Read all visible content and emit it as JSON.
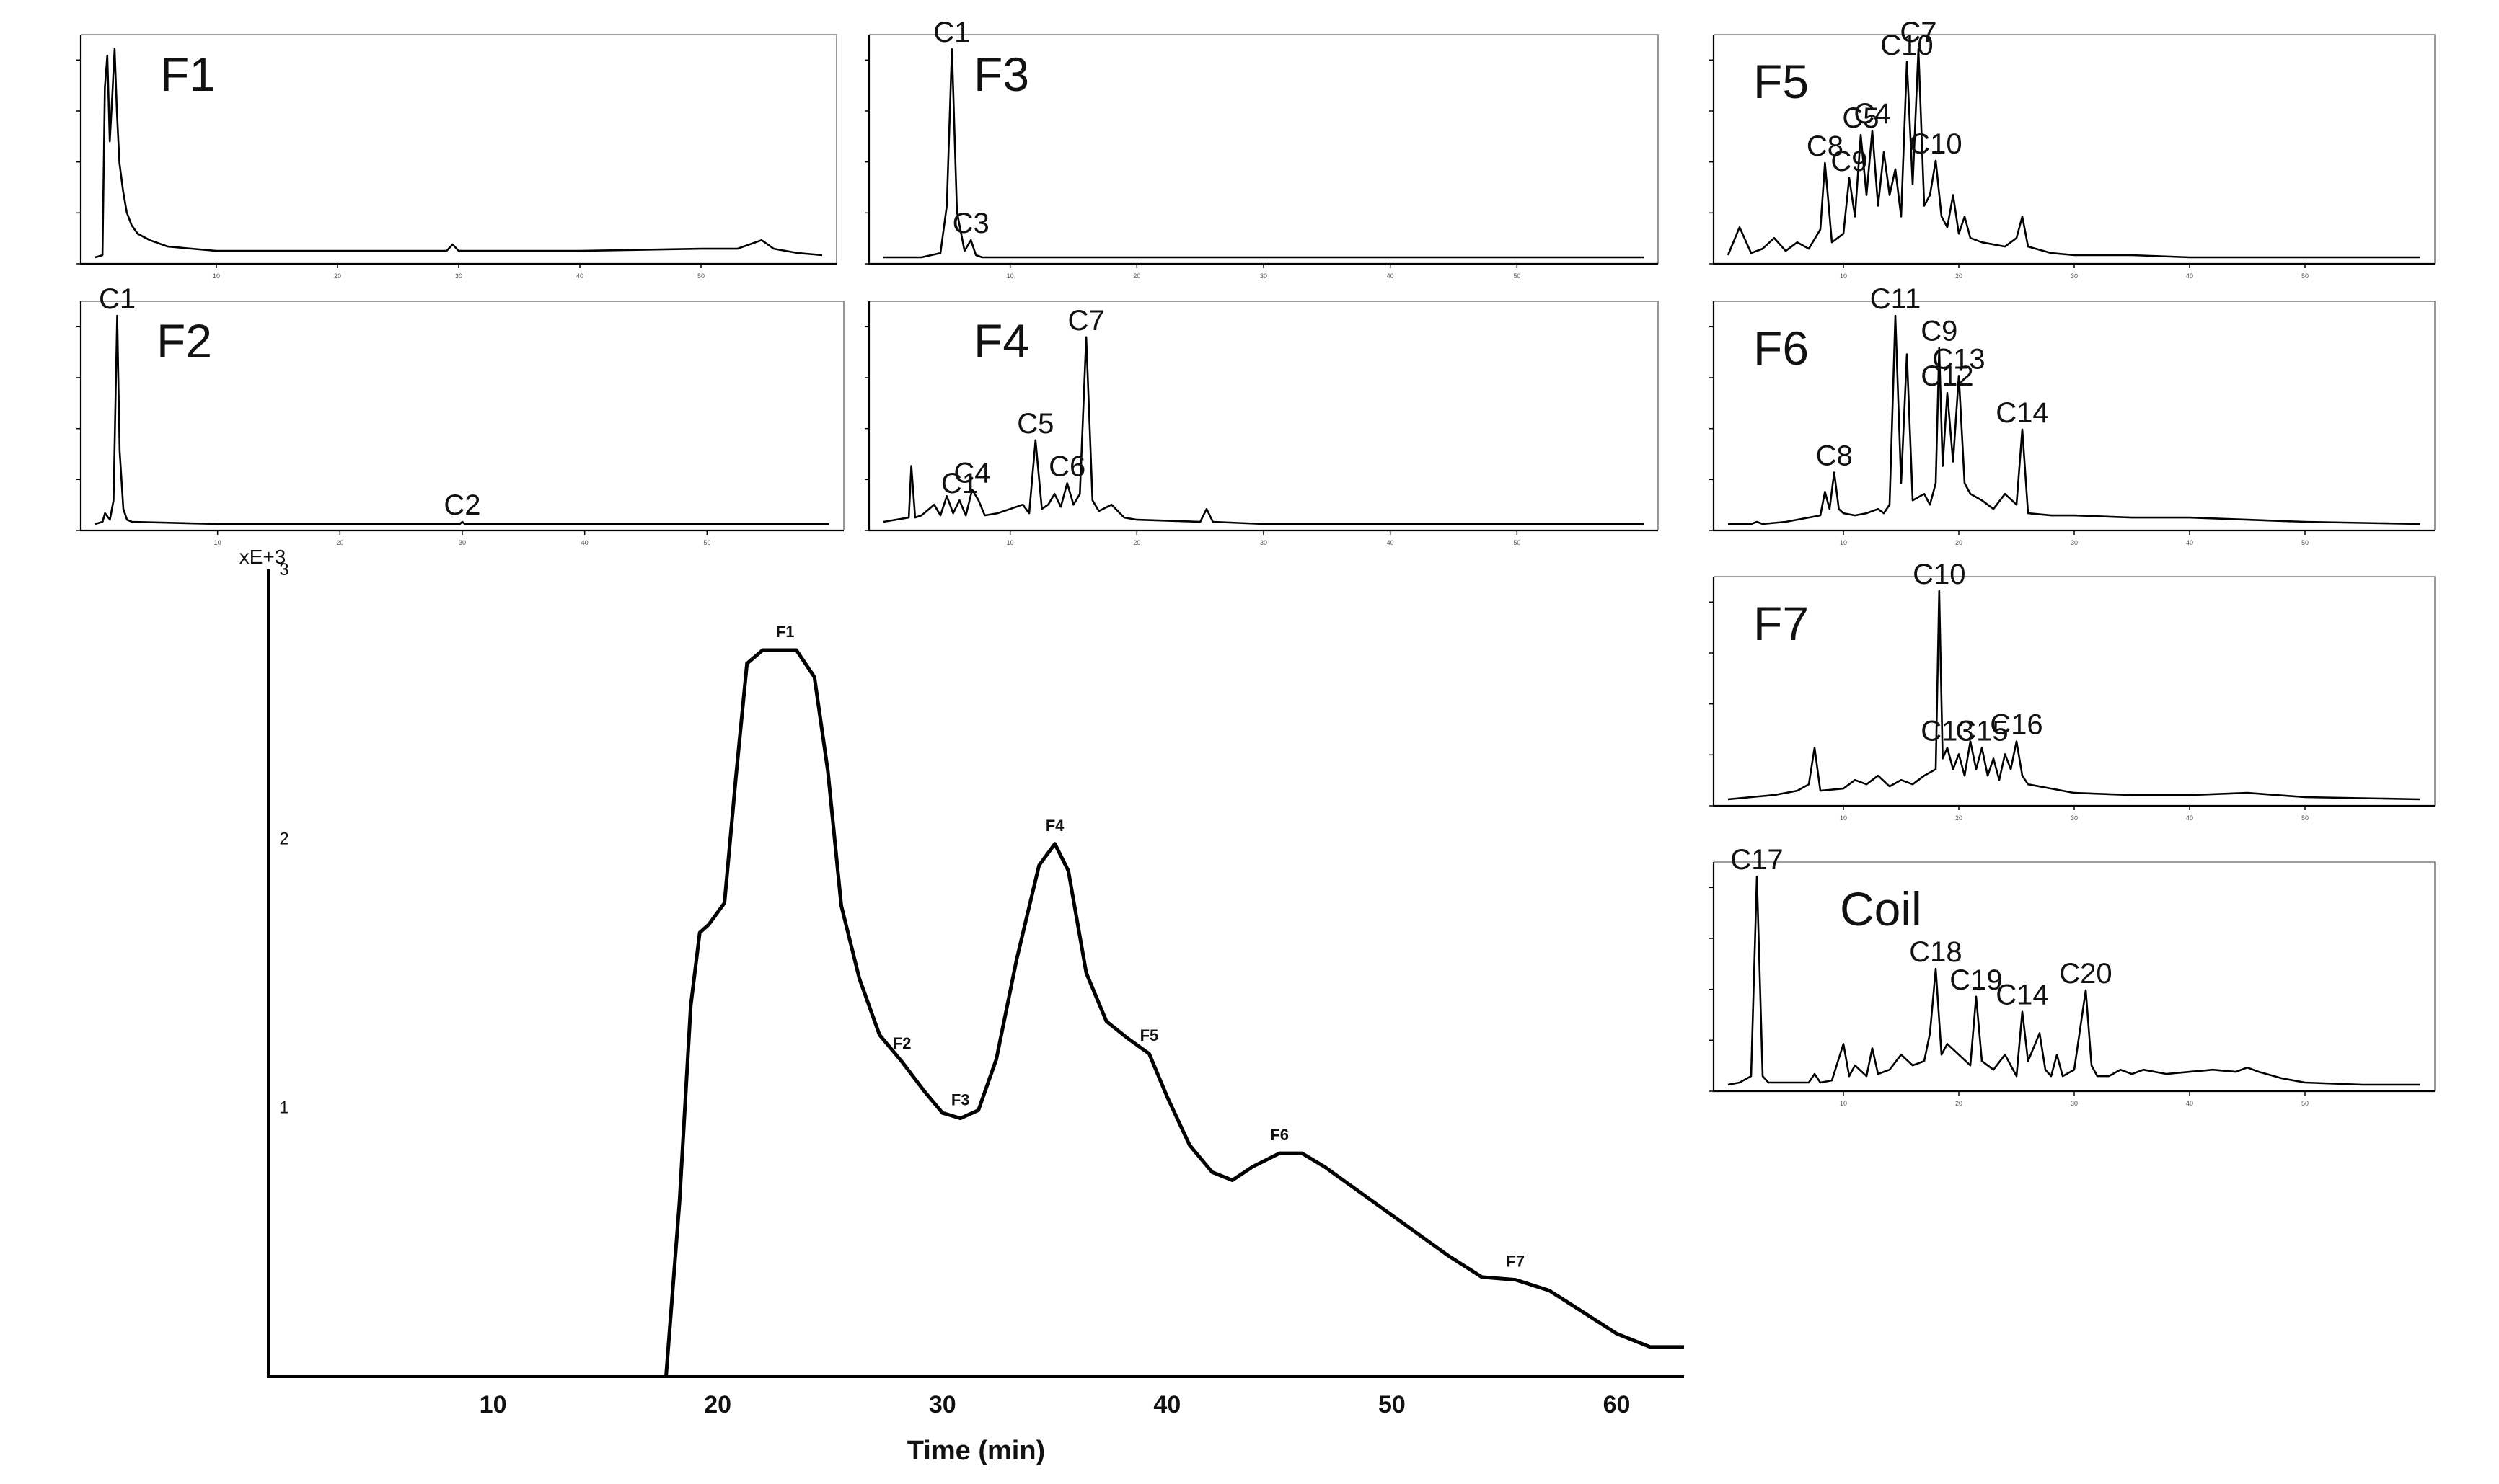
{
  "chart_data": [
    {
      "id": "main",
      "type": "line",
      "title": "",
      "xlabel": "Time (min)",
      "ylabel": "",
      "y_scale_label": "xE+3",
      "xlim": [
        0,
        63
      ],
      "ylim": [
        0,
        3
      ],
      "x_ticks": [
        "10",
        "20",
        "30",
        "40",
        "50",
        "60"
      ],
      "y_ticks": [
        "1",
        "2",
        "3"
      ],
      "series": [
        {
          "name": "profile",
          "x": [
            17.7,
            18.3,
            18.8,
            19.2,
            19.6,
            20.3,
            20.8,
            21.3,
            22.0,
            23.5,
            24.3,
            24.9,
            25.5,
            26.3,
            27.2,
            28.2,
            29.2,
            30.0,
            30.8,
            31.6,
            32.4,
            33.3,
            34.3,
            35.0,
            35.6,
            36.4,
            37.3,
            38.2,
            39.2,
            40.0,
            41.0,
            42.0,
            42.9,
            43.8,
            45.0,
            46.0,
            47.0,
            48.5,
            50.5,
            52.5,
            54.0,
            55.5,
            57.0,
            58.5,
            60.0,
            61.5,
            63.0
          ],
          "y": [
            0.0,
            0.65,
            1.38,
            1.65,
            1.68,
            1.76,
            2.22,
            2.65,
            2.7,
            2.7,
            2.6,
            2.25,
            1.75,
            1.48,
            1.27,
            1.17,
            1.06,
            0.98,
            0.96,
            0.99,
            1.18,
            1.55,
            1.9,
            1.98,
            1.88,
            1.5,
            1.32,
            1.26,
            1.2,
            1.04,
            0.86,
            0.76,
            0.73,
            0.78,
            0.83,
            0.83,
            0.78,
            0.69,
            0.57,
            0.45,
            0.37,
            0.36,
            0.32,
            0.24,
            0.16,
            0.11,
            0.11
          ]
        }
      ],
      "markers": [
        {
          "label": "F1",
          "x": 23.0,
          "y": 2.7
        },
        {
          "label": "F2",
          "x": 28.2,
          "y": 1.17
        },
        {
          "label": "F3",
          "x": 30.8,
          "y": 0.96
        },
        {
          "label": "F4",
          "x": 35.0,
          "y": 1.98
        },
        {
          "label": "F5",
          "x": 39.2,
          "y": 1.2
        },
        {
          "label": "F6",
          "x": 45.0,
          "y": 0.83
        },
        {
          "label": "F7",
          "x": 55.5,
          "y": 0.36
        }
      ]
    },
    {
      "id": "F1",
      "type": "line",
      "title": "F1",
      "xlim": [
        0,
        60
      ],
      "ylim": [
        0,
        1
      ],
      "x_ticks": [
        "10",
        "20",
        "30",
        "40",
        "50"
      ],
      "series": [
        {
          "name": "F1",
          "x": [
            0,
            0.6,
            0.8,
            1.0,
            1.2,
            1.4,
            1.6,
            1.8,
            2.0,
            2.3,
            2.6,
            3.0,
            3.5,
            4.5,
            6,
            10,
            20,
            29,
            29.5,
            30,
            40,
            50,
            53,
            55,
            56,
            58,
            60
          ],
          "y": [
            0.01,
            0.02,
            0.8,
            0.95,
            0.55,
            0.75,
            0.98,
            0.68,
            0.45,
            0.32,
            0.22,
            0.16,
            0.12,
            0.09,
            0.06,
            0.04,
            0.04,
            0.04,
            0.07,
            0.04,
            0.04,
            0.05,
            0.05,
            0.09,
            0.05,
            0.03,
            0.02
          ]
        }
      ],
      "peaks": []
    },
    {
      "id": "F2",
      "type": "line",
      "title": "F2",
      "xlim": [
        0,
        60
      ],
      "ylim": [
        0,
        1
      ],
      "x_ticks": [
        "10",
        "20",
        "30",
        "40",
        "50"
      ],
      "series": [
        {
          "name": "F2",
          "x": [
            0,
            0.6,
            0.8,
            1.2,
            1.5,
            1.8,
            2.0,
            2.3,
            2.6,
            3.0,
            10,
            29.8,
            30,
            30.2,
            60
          ],
          "y": [
            0.01,
            0.02,
            0.06,
            0.03,
            0.12,
            0.98,
            0.35,
            0.08,
            0.03,
            0.02,
            0.01,
            0.01,
            0.02,
            0.01,
            0.01
          ]
        }
      ],
      "peaks": [
        {
          "label": "C1",
          "x": 1.8,
          "y": 0.98
        },
        {
          "label": "C2",
          "x": 30.0,
          "y": 0.02
        }
      ]
    },
    {
      "id": "F3",
      "type": "line",
      "title": "F3",
      "xlim": [
        0,
        60
      ],
      "ylim": [
        0,
        1
      ],
      "x_ticks": [
        "10",
        "20",
        "30",
        "40",
        "50"
      ],
      "series": [
        {
          "name": "F3",
          "x": [
            0,
            3,
            4.5,
            5.0,
            5.4,
            5.8,
            6.4,
            6.9,
            7.3,
            7.8,
            9,
            60
          ],
          "y": [
            0.01,
            0.01,
            0.03,
            0.25,
            0.98,
            0.22,
            0.04,
            0.09,
            0.02,
            0.01,
            0.01,
            0.01
          ]
        }
      ],
      "peaks": [
        {
          "label": "C1",
          "x": 5.4,
          "y": 0.98
        },
        {
          "label": "C3",
          "x": 6.9,
          "y": 0.09
        }
      ]
    },
    {
      "id": "F4",
      "type": "line",
      "title": "F4",
      "xlim": [
        0,
        60
      ],
      "ylim": [
        0,
        1
      ],
      "x_ticks": [
        "10",
        "20",
        "30",
        "40",
        "50"
      ],
      "series": [
        {
          "name": "F4",
          "x": [
            0,
            2.0,
            2.2,
            2.5,
            3,
            4.0,
            4.5,
            5,
            5.5,
            6,
            6.5,
            7,
            7.5,
            8,
            9,
            10,
            11,
            11.5,
            12,
            12.5,
            13,
            13.5,
            14,
            14.5,
            15,
            15.5,
            16,
            16.5,
            17,
            18,
            19,
            20,
            25,
            25.5,
            26,
            30,
            60
          ],
          "y": [
            0.02,
            0.04,
            0.28,
            0.04,
            0.05,
            0.1,
            0.05,
            0.14,
            0.06,
            0.12,
            0.05,
            0.17,
            0.12,
            0.05,
            0.06,
            0.08,
            0.1,
            0.06,
            0.4,
            0.08,
            0.1,
            0.15,
            0.09,
            0.2,
            0.1,
            0.15,
            0.88,
            0.12,
            0.07,
            0.1,
            0.04,
            0.03,
            0.02,
            0.08,
            0.02,
            0.01,
            0.01
          ]
        }
      ],
      "peaks": [
        {
          "label": "C1",
          "x": 6.0,
          "y": 0.12
        },
        {
          "label": "C4",
          "x": 7.0,
          "y": 0.17
        },
        {
          "label": "C5",
          "x": 12.0,
          "y": 0.4
        },
        {
          "label": "C6",
          "x": 14.5,
          "y": 0.2
        },
        {
          "label": "C7",
          "x": 16.0,
          "y": 0.88
        }
      ]
    },
    {
      "id": "F5",
      "type": "line",
      "title": "F5",
      "xlim": [
        0,
        60
      ],
      "ylim": [
        0,
        1
      ],
      "x_ticks": [
        "10",
        "20",
        "30",
        "40",
        "50"
      ],
      "series": [
        {
          "name": "F5",
          "x": [
            0,
            1,
            2,
            3,
            4,
            5,
            6,
            7,
            8,
            8.4,
            9,
            9.5,
            10,
            10.5,
            11,
            11.5,
            12,
            12.5,
            13,
            13.5,
            14,
            14.5,
            15,
            15.5,
            16,
            16.5,
            17,
            17.5,
            18,
            18.5,
            19,
            19.5,
            20,
            20.5,
            21,
            22,
            24,
            25,
            25.5,
            26,
            28,
            30,
            35,
            40,
            45,
            50,
            60
          ],
          "y": [
            0.02,
            0.15,
            0.03,
            0.05,
            0.1,
            0.04,
            0.08,
            0.05,
            0.14,
            0.45,
            0.08,
            0.1,
            0.12,
            0.38,
            0.2,
            0.58,
            0.3,
            0.6,
            0.25,
            0.5,
            0.3,
            0.42,
            0.2,
            0.92,
            0.35,
            0.98,
            0.25,
            0.3,
            0.46,
            0.2,
            0.15,
            0.3,
            0.12,
            0.2,
            0.1,
            0.08,
            0.06,
            0.1,
            0.2,
            0.06,
            0.03,
            0.02,
            0.02,
            0.01,
            0.01,
            0.01,
            0.01
          ]
        }
      ],
      "peaks": [
        {
          "label": "C8",
          "x": 8.4,
          "y": 0.45
        },
        {
          "label": "C9",
          "x": 10.5,
          "y": 0.38
        },
        {
          "label": "C5",
          "x": 11.5,
          "y": 0.58
        },
        {
          "label": "C4",
          "x": 12.5,
          "y": 0.6
        },
        {
          "label": "C10",
          "x": 15.5,
          "y": 0.92
        },
        {
          "label": "C7",
          "x": 16.5,
          "y": 0.98
        },
        {
          "label": "C10",
          "x": 18.0,
          "y": 0.46
        }
      ]
    },
    {
      "id": "F6",
      "type": "line",
      "title": "F6",
      "xlim": [
        0,
        60
      ],
      "ylim": [
        0,
        1
      ],
      "x_ticks": [
        "10",
        "20",
        "30",
        "40",
        "50"
      ],
      "series": [
        {
          "name": "F6",
          "x": [
            0,
            2,
            2.5,
            3,
            5,
            7,
            8,
            8.4,
            8.8,
            9.2,
            9.6,
            10,
            11,
            12,
            13,
            13.5,
            14,
            14.5,
            15,
            15.5,
            16,
            17,
            17.5,
            18,
            18.3,
            18.6,
            19,
            19.5,
            20,
            20.5,
            21,
            22,
            23,
            24,
            25,
            25.5,
            26,
            28,
            30,
            35,
            40,
            45,
            50,
            60
          ],
          "y": [
            0.01,
            0.01,
            0.02,
            0.01,
            0.02,
            0.04,
            0.05,
            0.16,
            0.08,
            0.25,
            0.08,
            0.06,
            0.05,
            0.06,
            0.08,
            0.06,
            0.1,
            0.98,
            0.2,
            0.8,
            0.12,
            0.15,
            0.1,
            0.2,
            0.83,
            0.28,
            0.62,
            0.3,
            0.7,
            0.2,
            0.15,
            0.12,
            0.08,
            0.15,
            0.1,
            0.45,
            0.06,
            0.05,
            0.05,
            0.04,
            0.04,
            0.03,
            0.02,
            0.01
          ]
        }
      ],
      "peaks": [
        {
          "label": "C8",
          "x": 9.2,
          "y": 0.25
        },
        {
          "label": "C11",
          "x": 14.5,
          "y": 0.98
        },
        {
          "label": "C9",
          "x": 18.3,
          "y": 0.83
        },
        {
          "label": "C12",
          "x": 19.0,
          "y": 0.62
        },
        {
          "label": "C13",
          "x": 20.0,
          "y": 0.7
        },
        {
          "label": "C14",
          "x": 25.5,
          "y": 0.45
        }
      ]
    },
    {
      "id": "F7",
      "type": "line",
      "title": "F7",
      "xlim": [
        0,
        60
      ],
      "ylim": [
        0,
        1
      ],
      "x_ticks": [
        "10",
        "20",
        "30",
        "40",
        "50"
      ],
      "series": [
        {
          "name": "F7",
          "x": [
            0,
            2,
            4,
            6,
            7,
            7.5,
            8,
            10,
            11,
            12,
            13,
            14,
            15,
            16,
            17,
            18,
            18.3,
            18.6,
            19,
            19.5,
            20,
            20.5,
            21,
            21.5,
            22,
            22.5,
            23,
            23.5,
            24,
            24.5,
            25,
            25.5,
            26,
            28,
            30,
            35,
            40,
            45,
            50,
            60
          ],
          "y": [
            0.01,
            0.02,
            0.03,
            0.05,
            0.08,
            0.25,
            0.05,
            0.06,
            0.1,
            0.08,
            0.12,
            0.07,
            0.1,
            0.08,
            0.12,
            0.15,
            0.98,
            0.2,
            0.25,
            0.15,
            0.22,
            0.12,
            0.28,
            0.15,
            0.25,
            0.12,
            0.2,
            0.1,
            0.22,
            0.15,
            0.28,
            0.12,
            0.08,
            0.06,
            0.04,
            0.03,
            0.03,
            0.04,
            0.02,
            0.01
          ]
        }
      ],
      "peaks": [
        {
          "label": "C10",
          "x": 18.3,
          "y": 0.98
        },
        {
          "label": "C13",
          "x": 19.0,
          "y": 0.25
        },
        {
          "label": "C15",
          "x": 22.0,
          "y": 0.25
        },
        {
          "label": "C16",
          "x": 25.0,
          "y": 0.28
        }
      ]
    },
    {
      "id": "Coil",
      "type": "line",
      "title": "Coil",
      "xlim": [
        0,
        60
      ],
      "ylim": [
        0,
        1
      ],
      "x_ticks": [
        "10",
        "20",
        "30",
        "40",
        "50"
      ],
      "series": [
        {
          "name": "Coil",
          "x": [
            0,
            1,
            2,
            2.5,
            3,
            3.5,
            5,
            7,
            7.5,
            8,
            9,
            10,
            10.5,
            11,
            12,
            12.5,
            13,
            14,
            15,
            16,
            17,
            17.5,
            18,
            18.5,
            19,
            20,
            21,
            21.5,
            22,
            23,
            24,
            25,
            25.5,
            26,
            27,
            27.5,
            28,
            28.5,
            29,
            30,
            31,
            31.5,
            32,
            33,
            34,
            35,
            36,
            38,
            40,
            42,
            44,
            45,
            46,
            48,
            50,
            55,
            60
          ],
          "y": [
            0.01,
            0.02,
            0.05,
            0.98,
            0.05,
            0.02,
            0.02,
            0.02,
            0.06,
            0.02,
            0.03,
            0.2,
            0.05,
            0.1,
            0.05,
            0.18,
            0.06,
            0.08,
            0.15,
            0.1,
            0.12,
            0.25,
            0.55,
            0.15,
            0.2,
            0.15,
            0.1,
            0.42,
            0.12,
            0.08,
            0.15,
            0.05,
            0.35,
            0.12,
            0.25,
            0.08,
            0.05,
            0.15,
            0.05,
            0.08,
            0.45,
            0.1,
            0.05,
            0.05,
            0.08,
            0.06,
            0.08,
            0.06,
            0.07,
            0.08,
            0.07,
            0.09,
            0.07,
            0.04,
            0.02,
            0.01,
            0.01
          ]
        }
      ],
      "peaks": [
        {
          "label": "C17",
          "x": 2.5,
          "y": 0.98
        },
        {
          "label": "C18",
          "x": 18.0,
          "y": 0.55
        },
        {
          "label": "C19",
          "x": 21.5,
          "y": 0.42
        },
        {
          "label": "C14",
          "x": 25.5,
          "y": 0.35
        },
        {
          "label": "C20",
          "x": 31.0,
          "y": 0.45
        }
      ]
    }
  ]
}
